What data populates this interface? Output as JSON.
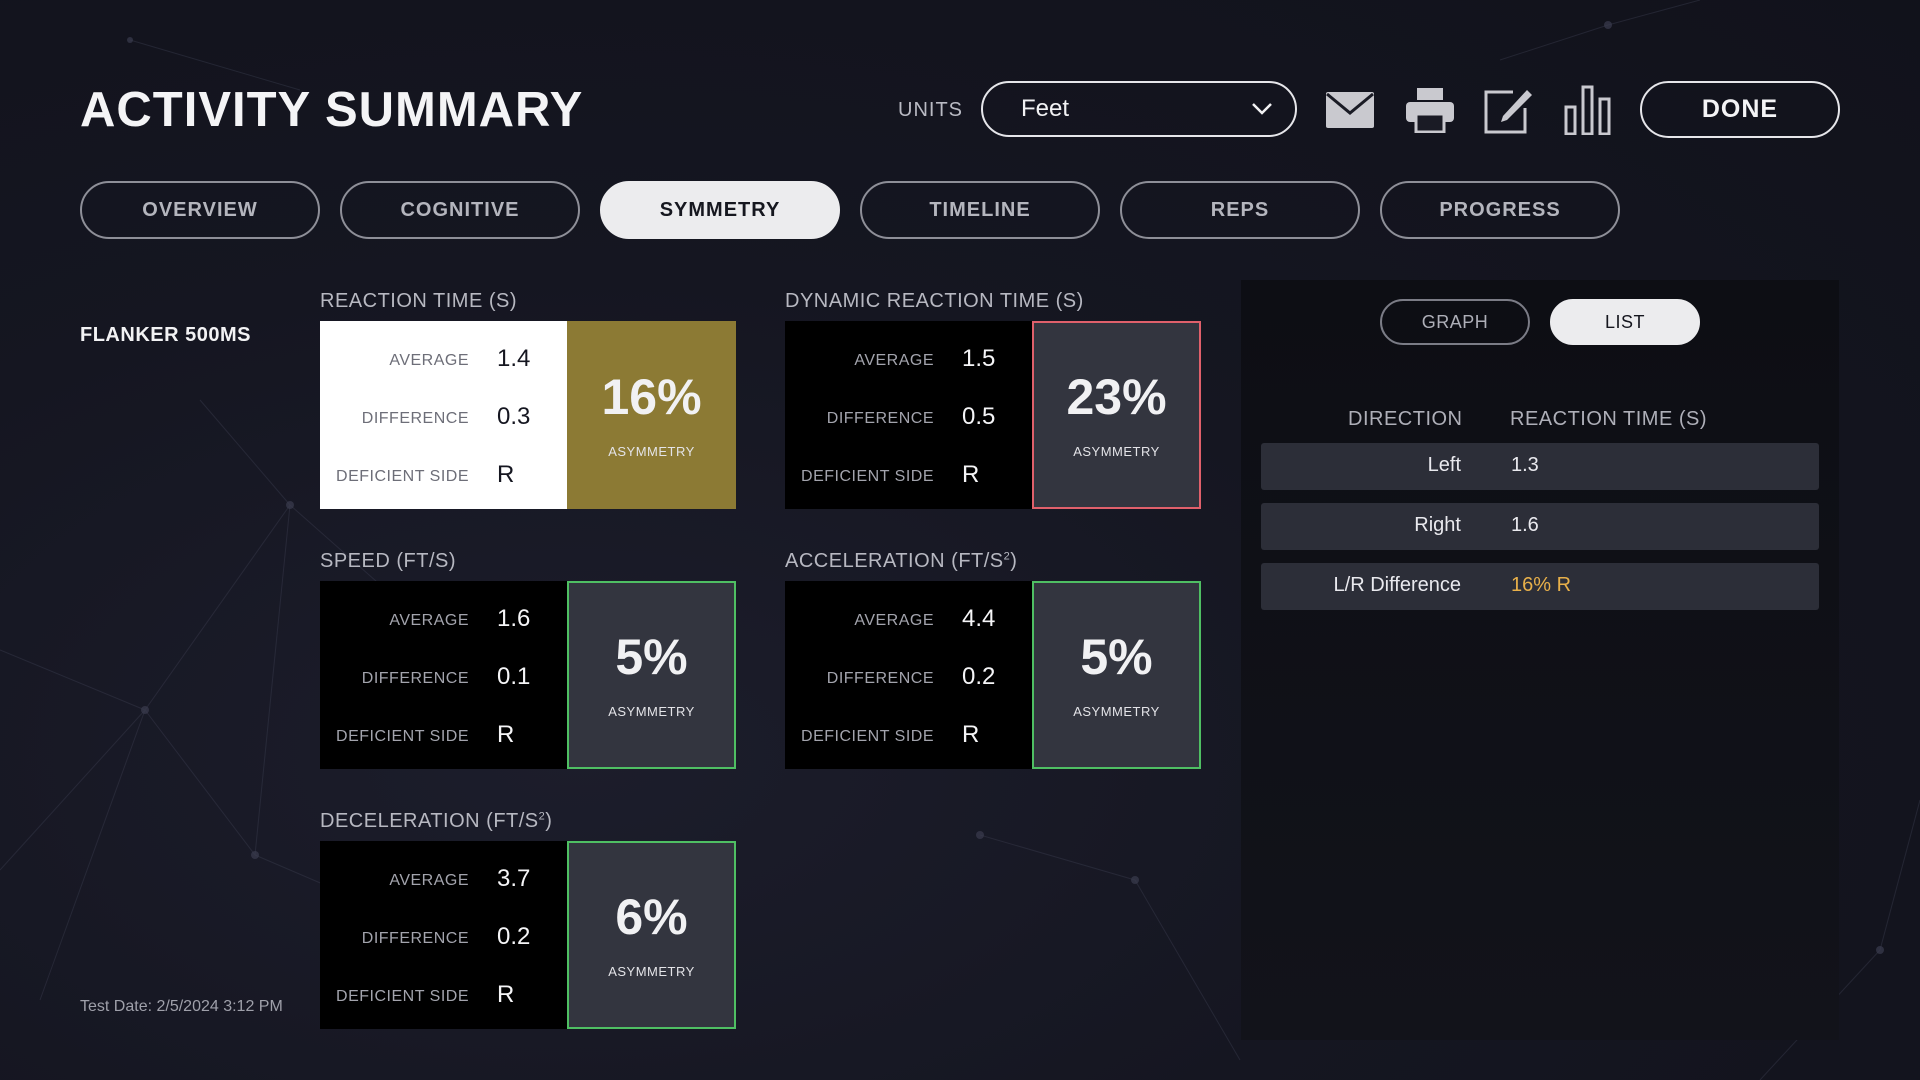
{
  "header": {
    "title": "ACTIVITY SUMMARY",
    "units_label": "UNITS",
    "units_value": "Feet",
    "done_label": "DONE",
    "icons": [
      "mail-icon",
      "print-icon",
      "edit-icon",
      "bar-chart-icon"
    ]
  },
  "tabs": [
    {
      "label": "OVERVIEW",
      "active": false
    },
    {
      "label": "COGNITIVE",
      "active": false
    },
    {
      "label": "SYMMETRY",
      "active": true
    },
    {
      "label": "TIMELINE",
      "active": false
    },
    {
      "label": "REPS",
      "active": false
    },
    {
      "label": "PROGRESS",
      "active": false
    }
  ],
  "activity": {
    "name": "FLANKER 500MS",
    "test_date": "Test Date: 2/5/2024 3:12 PM"
  },
  "metric_labels": {
    "average": "AVERAGE",
    "difference": "DIFFERENCE",
    "deficient_side": "DEFICIENT SIDE",
    "asymmetry": "ASYMMETRY"
  },
  "metrics": [
    {
      "title": "REACTION TIME (S)",
      "superscript": "",
      "title_suffix": "",
      "average": "1.4",
      "difference": "0.3",
      "deficient_side": "R",
      "asymmetry": "16%",
      "style": "gold",
      "stats_bg": "#ffffff"
    },
    {
      "title": "DYNAMIC REACTION TIME (S)",
      "superscript": "",
      "title_suffix": "",
      "average": "1.5",
      "difference": "0.5",
      "deficient_side": "R",
      "asymmetry": "23%",
      "style": "red",
      "border_color": "#e0606b"
    },
    {
      "title": "SPEED (FT/S)",
      "superscript": "",
      "title_suffix": "",
      "average": "1.6",
      "difference": "0.1",
      "deficient_side": "R",
      "asymmetry": "5%",
      "style": "green",
      "border_color": "#4fbf63"
    },
    {
      "title": "ACCELERATION (FT/S",
      "superscript": "2",
      "title_suffix": ")",
      "average": "4.4",
      "difference": "0.2",
      "deficient_side": "R",
      "asymmetry": "5%",
      "style": "green",
      "border_color": "#4fbf63"
    },
    {
      "title": "DECELERATION (FT/S",
      "superscript": "2",
      "title_suffix": ")",
      "average": "3.7",
      "difference": "0.2",
      "deficient_side": "R",
      "asymmetry": "6%",
      "style": "green",
      "border_color": "#4fbf63"
    }
  ],
  "side_panel": {
    "graph_label": "GRAPH",
    "list_label": "LIST",
    "active_view": "LIST",
    "col_direction": "DIRECTION",
    "col_reaction_time": "REACTION TIME (S)",
    "rows": [
      {
        "direction": "Left",
        "value": "1.3",
        "highlight": false
      },
      {
        "direction": "Right",
        "value": "1.6",
        "highlight": false
      },
      {
        "direction": "L/R Difference",
        "value": "16% R",
        "highlight": true
      }
    ],
    "highlight_color": "#e8b04a"
  }
}
